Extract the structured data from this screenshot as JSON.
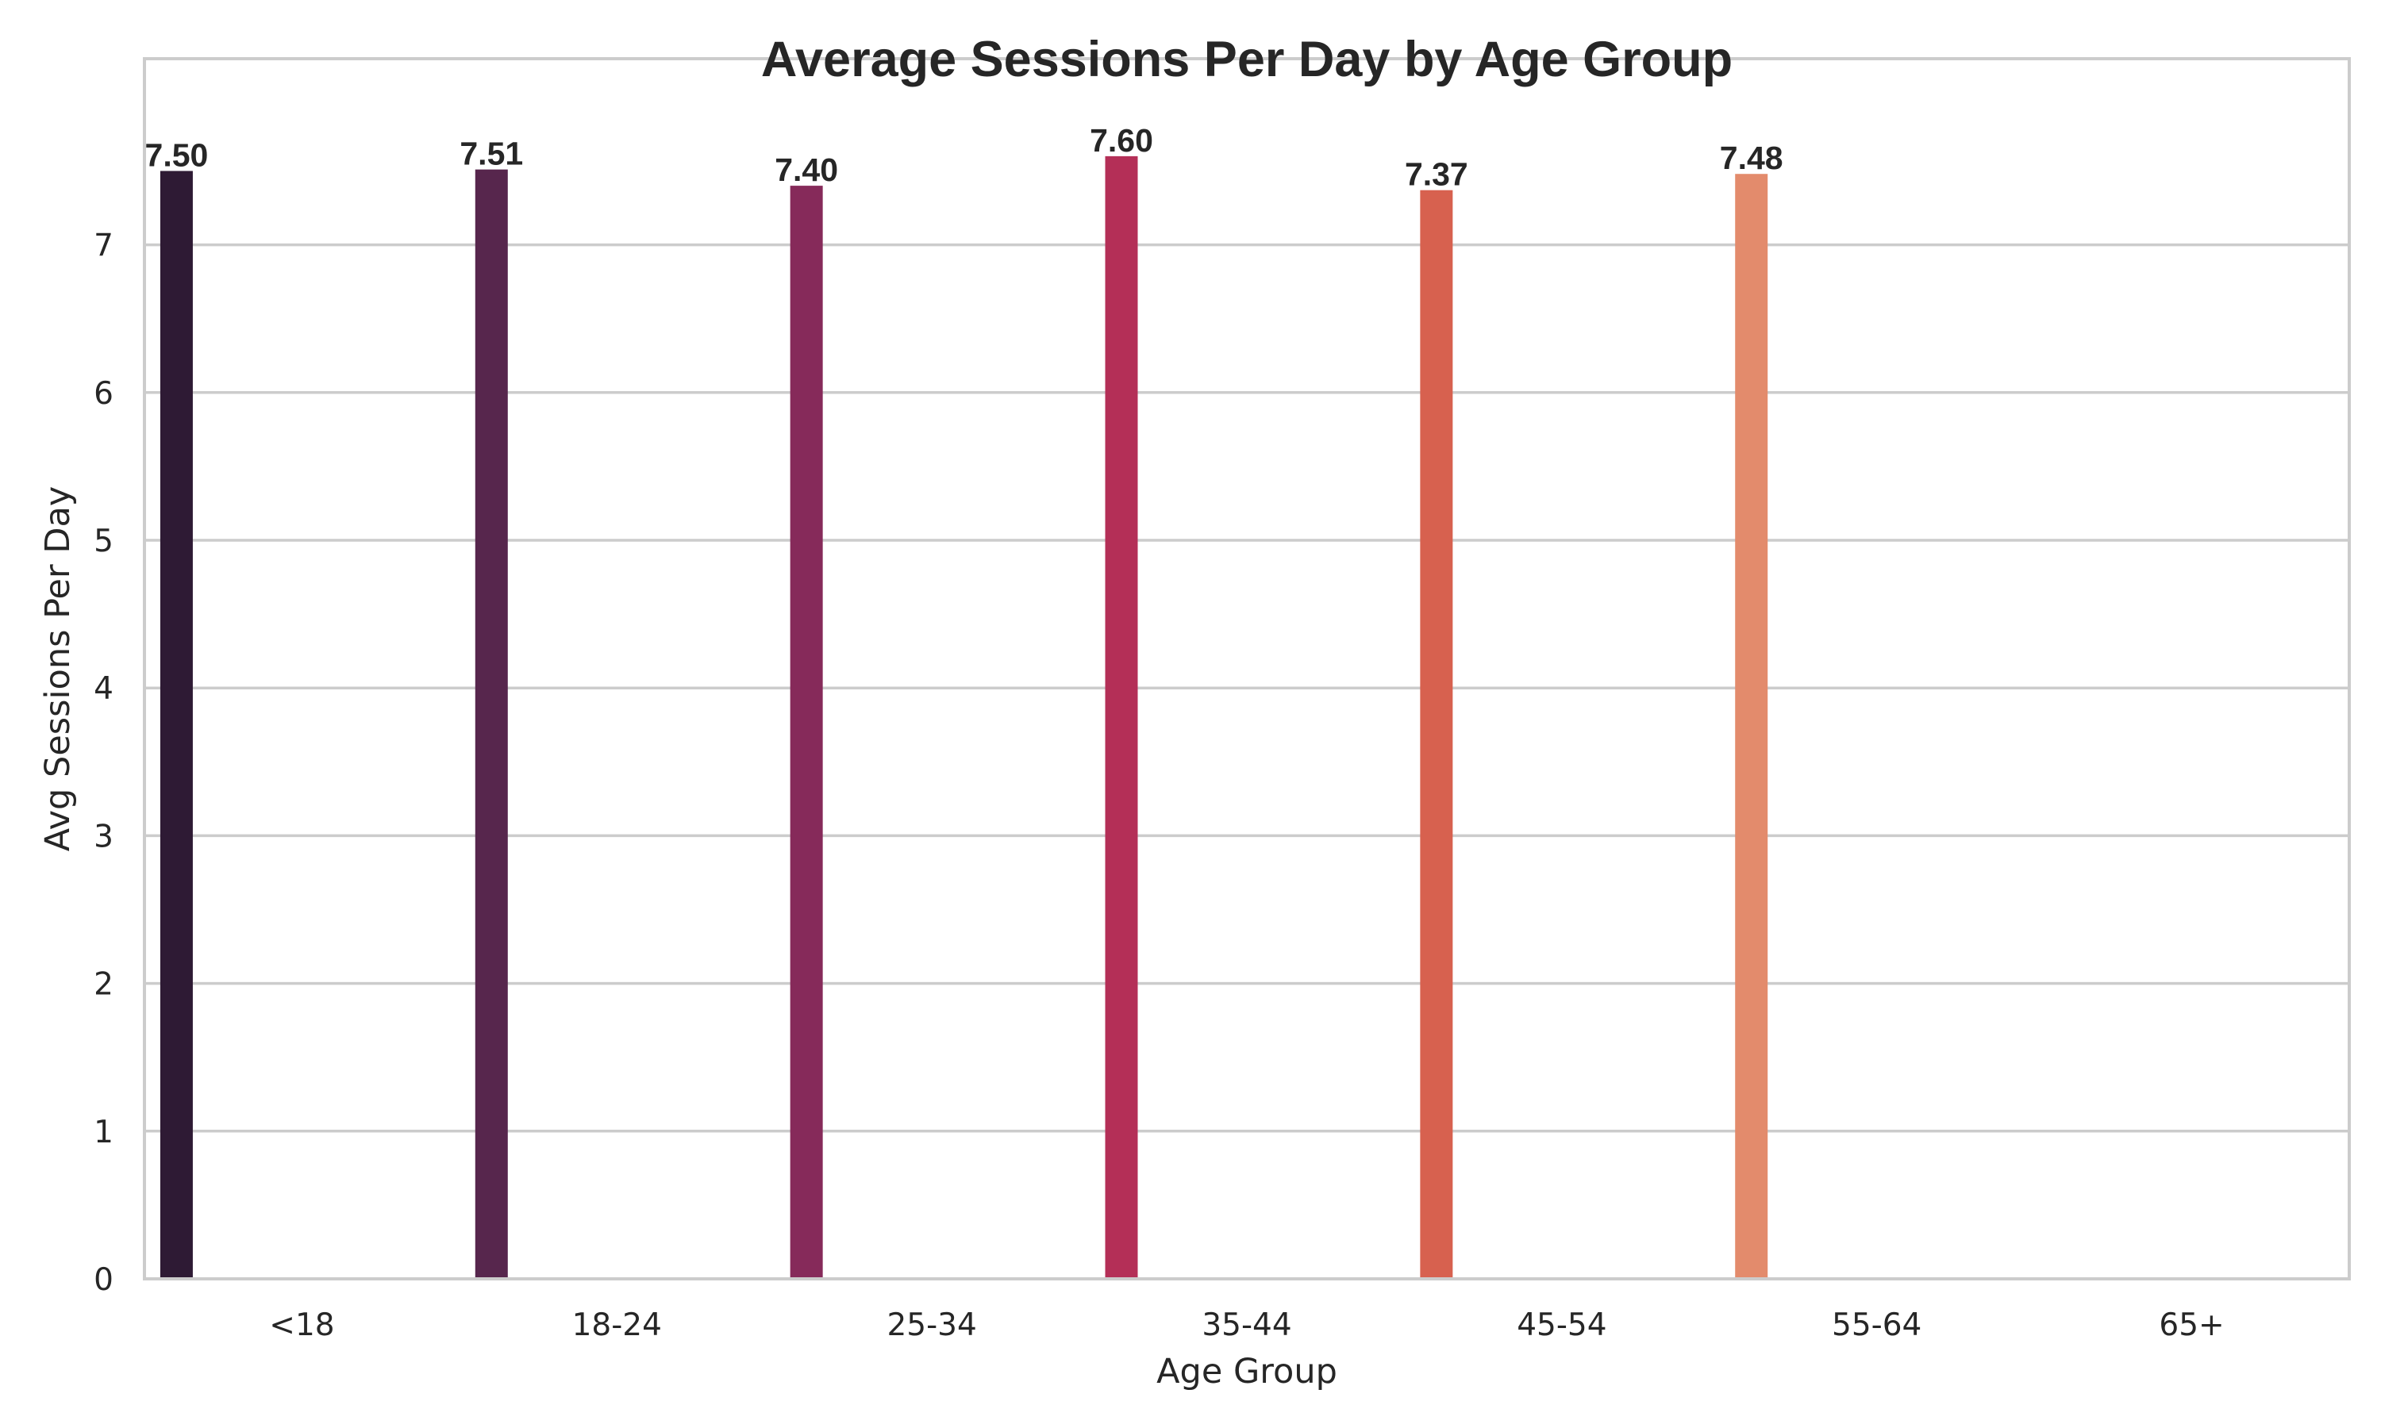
{
  "chart_data": {
    "type": "bar",
    "title": "Average Sessions Per Day by Age Group",
    "xlabel": "Age Group",
    "ylabel": "Avg Sessions Per Day",
    "categories": [
      "<18",
      "18-24",
      "25-34",
      "35-44",
      "45-54",
      "55-64",
      "65+"
    ],
    "values": [
      7.5,
      7.51,
      7.4,
      7.6,
      7.37,
      7.48,
      null
    ],
    "value_labels": [
      "7.50",
      "7.51",
      "7.40",
      "7.60",
      "7.37",
      "7.48",
      ""
    ],
    "yticks": [
      0,
      1,
      2,
      3,
      4,
      5,
      6,
      7
    ],
    "ylim": [
      0,
      8.29
    ],
    "grid": "horizontal",
    "colors": [
      "#2e1a34",
      "#57264d",
      "#862a5a",
      "#b42f57",
      "#d7614f",
      "#e38b6c",
      "#eab590"
    ]
  }
}
